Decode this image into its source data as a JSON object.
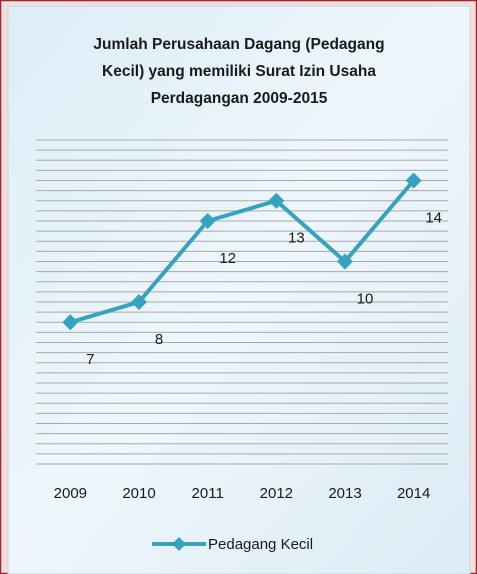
{
  "chart_data": {
    "type": "line",
    "title": [
      "Jumlah Perusahaan Dagang (Pedagang",
      "Kecil) yang memiliki Surat Izin Usaha",
      "Perdagangan 2009-2015"
    ],
    "categories": [
      "2009",
      "2010",
      "2011",
      "2012",
      "2013",
      "2014"
    ],
    "series": [
      {
        "name": "Pedagang Kecil",
        "color": "#35a3bf",
        "values": [
          7,
          8,
          12,
          13,
          10,
          14
        ]
      }
    ],
    "ylim": [
      0,
      16
    ],
    "yticks": [
      0,
      0.5,
      1,
      1.5,
      2,
      2.5,
      3,
      3.5,
      4,
      4.5,
      5,
      5.5,
      6,
      6.5,
      7,
      7.5,
      8,
      8.5,
      9,
      9.5,
      10,
      10.5,
      11,
      11.5,
      12,
      12.5,
      13,
      13.5,
      14,
      14.5,
      15,
      15.5,
      16
    ],
    "grid": true,
    "legend": "bottom"
  }
}
